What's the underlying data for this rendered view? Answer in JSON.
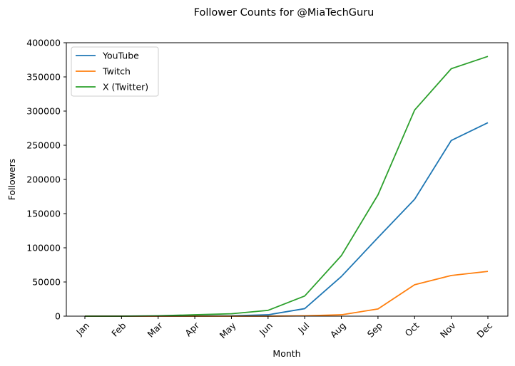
{
  "chart_data": {
    "type": "line",
    "title": "Follower Counts for @MiaTechGuru",
    "xlabel": "Month",
    "ylabel": "Followers",
    "categories": [
      "Jan",
      "Feb",
      "Mar",
      "Apr",
      "May",
      "Jun",
      "Jul",
      "Aug",
      "Sep",
      "Oct",
      "Nov",
      "Dec"
    ],
    "ylim": [
      0,
      400000
    ],
    "yticks": [
      0,
      50000,
      100000,
      150000,
      200000,
      250000,
      300000,
      350000,
      400000
    ],
    "ytick_labels": [
      "0",
      "50000",
      "100000",
      "150000",
      "200000",
      "250000",
      "300000",
      "350000",
      "400000"
    ],
    "grid": false,
    "legend_position": "upper-left",
    "series": [
      {
        "name": "YouTube",
        "color": "#1f77b4",
        "values": [
          0,
          0,
          0,
          200,
          500,
          2000,
          11000,
          58000,
          115000,
          171000,
          257000,
          283000
        ]
      },
      {
        "name": "Twitch",
        "color": "#ff7f0e",
        "values": [
          0,
          0,
          0,
          0,
          0,
          0,
          500,
          2000,
          10500,
          46000,
          59500,
          65500
        ]
      },
      {
        "name": "X (Twitter)",
        "color": "#2ca02c",
        "values": [
          0,
          0,
          500,
          2000,
          3500,
          8500,
          29500,
          88500,
          177500,
          301500,
          362000,
          380000
        ]
      }
    ]
  }
}
